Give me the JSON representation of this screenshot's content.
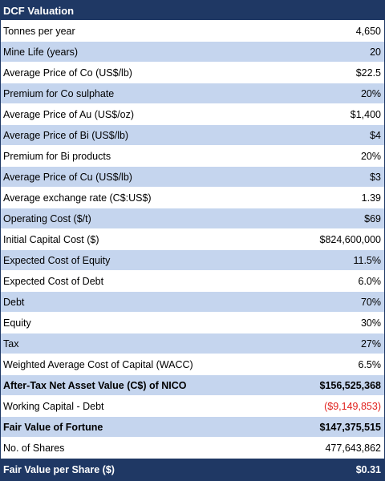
{
  "table": {
    "title": "DCF Valuation",
    "rows": [
      {
        "label": "Tonnes per year",
        "value": "4,650"
      },
      {
        "label": "Mine Life (years)",
        "value": "20"
      },
      {
        "label": "Average Price of Co (US$/lb)",
        "value": "$22.5"
      },
      {
        "label": "Premium for Co sulphate",
        "value": "20%"
      },
      {
        "label": "Average Price of Au (US$/oz)",
        "value": "$1,400"
      },
      {
        "label": "Average Price of Bi (US$/lb)",
        "value": "$4"
      },
      {
        "label": "Premium for Bi products",
        "value": "20%"
      },
      {
        "label": "Average Price of Cu (US$/lb)",
        "value": "$3"
      },
      {
        "label": "Average exchange rate (C$:US$)",
        "value": "1.39"
      },
      {
        "label": "Operating Cost ($/t)",
        "value": "$69"
      },
      {
        "label": "Initial Capital Cost ($)",
        "value": "$824,600,000"
      },
      {
        "label": "Expected Cost of Equity",
        "value": "11.5%"
      },
      {
        "label": "Expected Cost of Debt",
        "value": "6.0%"
      },
      {
        "label": "Debt",
        "value": "70%"
      },
      {
        "label": "Equity",
        "value": "30%"
      },
      {
        "label": "Tax",
        "value": "27%"
      },
      {
        "label": "Weighted Average Cost of Capital (WACC)",
        "value": "6.5%"
      },
      {
        "label": "After-Tax Net Asset Value (C$) of NICO",
        "value": "$156,525,368"
      },
      {
        "label": "Working Capital - Debt",
        "value": "($9,149,853)"
      },
      {
        "label": "Fair Value of Fortune",
        "value": "$147,375,515"
      },
      {
        "label": "No. of Shares",
        "value": "477,643,862"
      }
    ],
    "footer": {
      "label": "Fair Value per Share ($)",
      "value": "$0.31"
    }
  },
  "colors": {
    "header_bg": "#1f3864",
    "alt_row_bg": "#c5d5ee",
    "negative_text": "#e0201c"
  }
}
